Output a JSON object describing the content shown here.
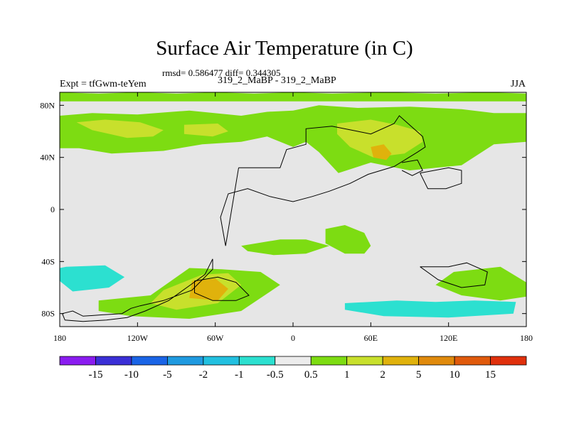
{
  "header": {
    "title": "Surface Air Temperature (in C)",
    "stats": "rmsd= 0.586477 diff= 0.344305",
    "experiment": "Expt = tfGwm-teYem",
    "comparison": "319_2_MaBP - 319_2_MaBP",
    "season": "JJA"
  },
  "colors": {
    "background": "#e6e6e6",
    "coastline": "#000000"
  },
  "chart_data": {
    "type": "heatmap",
    "title": "Surface Air Temperature (in C)",
    "xlim": [
      -180,
      180
    ],
    "ylim": [
      -90,
      90
    ],
    "x_ticks": [
      {
        "value": -180,
        "label": "180"
      },
      {
        "value": -120,
        "label": "120W"
      },
      {
        "value": -60,
        "label": "60W"
      },
      {
        "value": 0,
        "label": "0"
      },
      {
        "value": 60,
        "label": "60E"
      },
      {
        "value": 120,
        "label": "120E"
      },
      {
        "value": 180,
        "label": "180"
      }
    ],
    "y_ticks": [
      {
        "value": 80,
        "label": "80N"
      },
      {
        "value": 40,
        "label": "40N"
      },
      {
        "value": 0,
        "label": "0"
      },
      {
        "value": -40,
        "label": "40S"
      },
      {
        "value": -80,
        "label": "80S"
      }
    ],
    "colorbar": {
      "colors": [
        "#8a1cf0",
        "#3a2fd6",
        "#1a64e6",
        "#1f9ae0",
        "#22c0e0",
        "#2ce0d0",
        "#ececec",
        "#7ddc12",
        "#c8e02c",
        "#e0b20c",
        "#e08a0c",
        "#e05a0c",
        "#e0300c"
      ],
      "labels": [
        "-15",
        "-10",
        "-5",
        "-2",
        "-1",
        "-0.5",
        "0.5",
        "1",
        "2",
        "5",
        "10",
        "15"
      ]
    },
    "fields": [
      {
        "level": 7,
        "lon": [
          -180,
          -155,
          -120,
          -80,
          -40,
          -20,
          0,
          20,
          50,
          90,
          130,
          155,
          180,
          180,
          155,
          130,
          90,
          60,
          35,
          20,
          10,
          0,
          -20,
          -40,
          -70,
          -100,
          -140,
          -165,
          -180
        ],
        "lat": [
          72,
          74,
          73,
          76,
          72,
          75,
          76,
          80,
          78,
          79,
          77,
          74,
          74,
          52,
          50,
          34,
          30,
          36,
          28,
          44,
          52,
          48,
          56,
          52,
          50,
          45,
          43,
          47,
          47
        ]
      },
      {
        "level": 7,
        "lon": [
          -180,
          -150,
          -120,
          -90,
          -60,
          -30,
          0,
          30,
          70,
          110,
          150,
          180,
          180,
          -180
        ],
        "lat": [
          90,
          89,
          90,
          89,
          90,
          89,
          90,
          89,
          90,
          89,
          90,
          89,
          83,
          83
        ]
      },
      {
        "level": 8,
        "lon": [
          -167,
          -145,
          -118,
          -100,
          -108,
          -128,
          -155
        ],
        "lat": [
          67,
          69,
          67,
          61,
          56,
          55,
          61
        ]
      },
      {
        "level": 8,
        "lon": [
          -84,
          -58,
          -50,
          -62,
          -84
        ],
        "lat": [
          65,
          66,
          60,
          56,
          58
        ]
      },
      {
        "level": 8,
        "lon": [
          34,
          60,
          80,
          98,
          100,
          86,
          62,
          44,
          34
        ],
        "lat": [
          66,
          69,
          65,
          60,
          52,
          43,
          40,
          48,
          58
        ]
      },
      {
        "level": 9,
        "lon": [
          60,
          70,
          76,
          72,
          62
        ],
        "lat": [
          48,
          50,
          43,
          38,
          40
        ]
      },
      {
        "level": 7,
        "lon": [
          -40,
          -10,
          10,
          28,
          10,
          -15,
          -35
        ],
        "lat": [
          -28,
          -23,
          -23,
          -28,
          -34,
          -35,
          -32
        ]
      },
      {
        "level": 7,
        "lon": [
          25,
          40,
          55,
          60,
          55,
          40,
          25
        ],
        "lat": [
          -15,
          -12,
          -18,
          -28,
          -34,
          -34,
          -26
        ]
      },
      {
        "level": 7,
        "lon": [
          -150,
          -110,
          -80,
          -55,
          -25,
          -10,
          -40,
          -80,
          -125,
          -150
        ],
        "lat": [
          -70,
          -66,
          -45,
          -46,
          -48,
          -58,
          -78,
          -84,
          -82,
          -78
        ]
      },
      {
        "level": 8,
        "lon": [
          -100,
          -70,
          -50,
          -40,
          -58,
          -90,
          -110
        ],
        "lat": [
          -62,
          -50,
          -49,
          -58,
          -72,
          -77,
          -72
        ]
      },
      {
        "level": 9,
        "lon": [
          -78,
          -60,
          -50,
          -58,
          -80
        ],
        "lat": [
          -55,
          -53,
          -61,
          -70,
          -68
        ]
      },
      {
        "level": 7,
        "lon": [
          124,
          160,
          180,
          180,
          160,
          130,
          110,
          124
        ],
        "lat": [
          -48,
          -44,
          -56,
          -67,
          -70,
          -66,
          -58,
          -48
        ]
      },
      {
        "level": 5,
        "lon": [
          -175,
          -145,
          -130,
          -142,
          -170,
          -180,
          -180
        ],
        "lat": [
          -44,
          -43,
          -52,
          -60,
          -63,
          -55,
          -45
        ]
      },
      {
        "level": 5,
        "lon": [
          40,
          80,
          110,
          140,
          172,
          170,
          120,
          70,
          40
        ],
        "lat": [
          -72,
          -70,
          -71,
          -70,
          -71,
          -80,
          -83,
          -82,
          -77
        ]
      }
    ],
    "coastlines": [
      {
        "lon": [
          -42,
          -10,
          -5,
          10,
          10,
          30,
          50,
          60,
          78,
          82,
          100,
          102,
          96,
          78,
          58,
          44,
          28,
          15,
          0,
          -18,
          -35,
          -50,
          -56,
          -52,
          -42
        ],
        "lat": [
          32,
          32,
          46,
          50,
          62,
          64,
          60,
          58,
          66,
          72,
          56,
          48,
          44,
          33,
          27,
          20,
          14,
          10,
          6,
          10,
          16,
          12,
          -6,
          -28,
          32
        ]
      },
      {
        "lon": [
          -62,
          -62,
          -70,
          -78,
          -100,
          -118,
          -125,
          -132,
          -148,
          -162,
          -170,
          -178,
          -176,
          -162,
          -144,
          -128,
          -114,
          -96,
          -82,
          -68,
          -62
        ],
        "lat": [
          -38,
          -46,
          -54,
          -62,
          -70,
          -74,
          -76,
          -80,
          -81,
          -82,
          -78,
          -80,
          -85,
          -86,
          -85,
          -83,
          -78,
          -70,
          -60,
          -50,
          -38
        ]
      },
      {
        "lon": [
          -76,
          -58,
          -44,
          -34,
          -44,
          -62,
          -76,
          -76
        ],
        "lat": [
          -55,
          -52,
          -56,
          -66,
          -70,
          -70,
          -64,
          -55
        ]
      },
      {
        "lon": [
          98,
          120,
          134,
          150,
          148,
          130,
          112,
          98
        ],
        "lat": [
          -44,
          -44,
          -41,
          -48,
          -58,
          -60,
          -54,
          -44
        ]
      },
      {
        "lon": [
          84,
          96,
          100,
          92,
          84
        ],
        "lat": [
          36,
          38,
          30,
          26,
          30
        ]
      },
      {
        "lon": [
          98,
          120,
          130,
          130,
          118,
          104,
          98
        ],
        "lat": [
          28,
          32,
          30,
          20,
          16,
          16,
          28
        ]
      }
    ]
  }
}
